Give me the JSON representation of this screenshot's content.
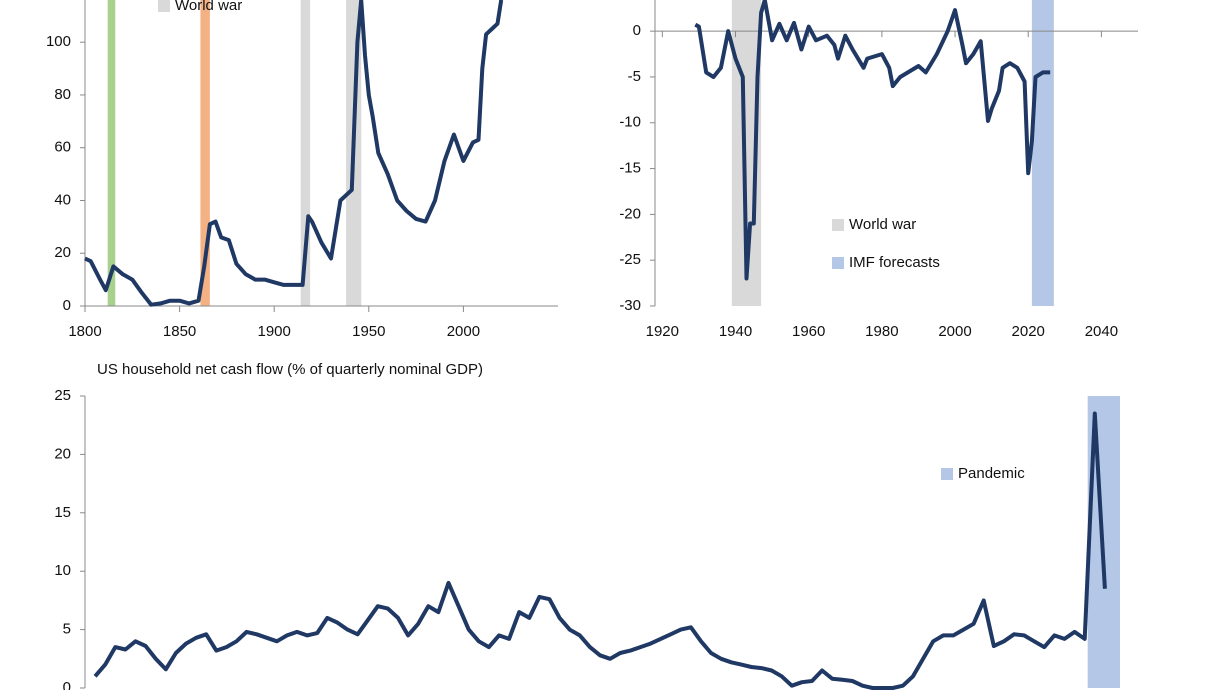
{
  "chart_data": [
    {
      "type": "line",
      "color": "#1f3864",
      "xlim": [
        1800,
        2050
      ],
      "xticks": [
        1800,
        1850,
        1900,
        1950,
        2000
      ],
      "ylim": [
        0,
        116
      ],
      "yticks": [
        0,
        20,
        40,
        60,
        80,
        100
      ],
      "bands": [
        {
          "start": 1812,
          "end": 1816,
          "color": "#a9d18e"
        },
        {
          "start": 1861,
          "end": 1866,
          "color": "#f4b183"
        },
        {
          "start": 1914,
          "end": 1919,
          "color": "#d9d9d9"
        },
        {
          "start": 1938,
          "end": 1946,
          "color": "#d9d9d9"
        }
      ],
      "legend": [
        {
          "name": "World war",
          "color": "#d9d9d9"
        }
      ],
      "x": [
        1800,
        1803,
        1808,
        1811,
        1815,
        1820,
        1825,
        1830,
        1835,
        1840,
        1845,
        1850,
        1855,
        1860,
        1863,
        1866,
        1869,
        1872,
        1876,
        1880,
        1885,
        1890,
        1895,
        1900,
        1905,
        1910,
        1915,
        1918,
        1920,
        1925,
        1930,
        1935,
        1938,
        1941,
        1944,
        1946,
        1948,
        1950,
        1952,
        1955,
        1960,
        1965,
        1970,
        1975,
        1980,
        1985,
        1990,
        1995,
        2000,
        2005,
        2008,
        2010,
        2012,
        2015,
        2018,
        2020
      ],
      "values": [
        18,
        17,
        10,
        6,
        15,
        12,
        10,
        5,
        0.5,
        1,
        2,
        2,
        1,
        2,
        15,
        31,
        32,
        26,
        25,
        16,
        12,
        10,
        10,
        9,
        8,
        8,
        8,
        34,
        32,
        24,
        18,
        40,
        42,
        44,
        100,
        116,
        95,
        80,
        72,
        58,
        50,
        40,
        36,
        33,
        32,
        40,
        55,
        65,
        55,
        62,
        63,
        90,
        103,
        105,
        107,
        116
      ]
    },
    {
      "type": "line",
      "color": "#1f3864",
      "xlim": [
        1918,
        2050
      ],
      "xticks": [
        1920,
        1940,
        1960,
        1980,
        2000,
        2020,
        2040
      ],
      "ylim": [
        -30,
        3.4
      ],
      "yticks": [
        0,
        -5,
        -10,
        -15,
        -20,
        -25,
        -30
      ],
      "bands": [
        {
          "start": 1939,
          "end": 1947,
          "color": "#d9d9d9"
        },
        {
          "start": 2021,
          "end": 2027,
          "color": "#b4c7e7"
        }
      ],
      "legend": [
        {
          "name": "World war",
          "color": "#d9d9d9"
        },
        {
          "name": "IMF forecasts",
          "color": "#b4c7e7"
        }
      ],
      "x": [
        1929,
        1930,
        1932,
        1934,
        1936,
        1938,
        1940,
        1942,
        1943,
        1944,
        1945,
        1946,
        1947,
        1948,
        1950,
        1952,
        1954,
        1956,
        1958,
        1960,
        1962,
        1965,
        1967,
        1968,
        1970,
        1972,
        1975,
        1976,
        1980,
        1982,
        1983,
        1985,
        1990,
        1992,
        1995,
        1998,
        2000,
        2002,
        2003,
        2005,
        2007,
        2009,
        2010,
        2012,
        2013,
        2015,
        2017,
        2019,
        2020,
        2021,
        2022,
        2024,
        2026
      ],
      "values": [
        0.7,
        0.5,
        -4.5,
        -5,
        -4,
        0,
        -3,
        -5,
        -27,
        -21,
        -21,
        -5,
        2,
        3.4,
        -1,
        0.8,
        -1,
        0.9,
        -2,
        0.5,
        -1,
        -0.5,
        -1.5,
        -3,
        -0.5,
        -2,
        -4,
        -3,
        -2.5,
        -4,
        -6,
        -5,
        -3.8,
        -4.5,
        -2.5,
        0,
        2.3,
        -1.5,
        -3.5,
        -2.5,
        -1.1,
        -9.8,
        -8.5,
        -6.5,
        -4,
        -3.5,
        -4,
        -5.5,
        -15.5,
        -12,
        -5,
        -4.5,
        -4.5
      ]
    },
    {
      "type": "line",
      "color": "#1f3864",
      "title": "US household net cash flow (% of quarterly nominal GDP)",
      "xlim": [
        -1,
        101.5
      ],
      "ylim": [
        0,
        25
      ],
      "yticks": [
        0,
        5,
        10,
        15,
        20,
        25
      ],
      "bands": [
        {
          "start": 98.3,
          "end": 101.5,
          "color": "#b4c7e7"
        }
      ],
      "legend": [
        {
          "name": "Pandemic",
          "color": "#b4c7e7"
        }
      ],
      "values": [
        1,
        2,
        3.5,
        3.3,
        4,
        3.6,
        2.5,
        1.6,
        3,
        3.8,
        4.3,
        4.6,
        3.2,
        3.5,
        4,
        4.8,
        4.6,
        4.3,
        4,
        4.5,
        4.8,
        4.5,
        4.7,
        6,
        5.6,
        5,
        4.6,
        5.8,
        7,
        6.8,
        6,
        4.5,
        5.5,
        7,
        6.5,
        9,
        7,
        5,
        4,
        3.5,
        4.5,
        4.2,
        6.5,
        6,
        7.8,
        7.6,
        6,
        5,
        4.5,
        3.5,
        2.8,
        2.5,
        3,
        3.2,
        3.5,
        3.8,
        4.2,
        4.6,
        5,
        5.2,
        4,
        3,
        2.5,
        2.2,
        2,
        1.8,
        1.7,
        1.5,
        1,
        0.2,
        0.5,
        0.6,
        1.5,
        0.8,
        0.7,
        0.6,
        0.2,
        0,
        0,
        0,
        0.2,
        1,
        2.5,
        4,
        4.5,
        4.5,
        5,
        5.5,
        7.5,
        3.6,
        4,
        4.6,
        4.5,
        4,
        3.5,
        4.5,
        4.2,
        4.8,
        4.2,
        23.5,
        8.5
      ]
    }
  ]
}
